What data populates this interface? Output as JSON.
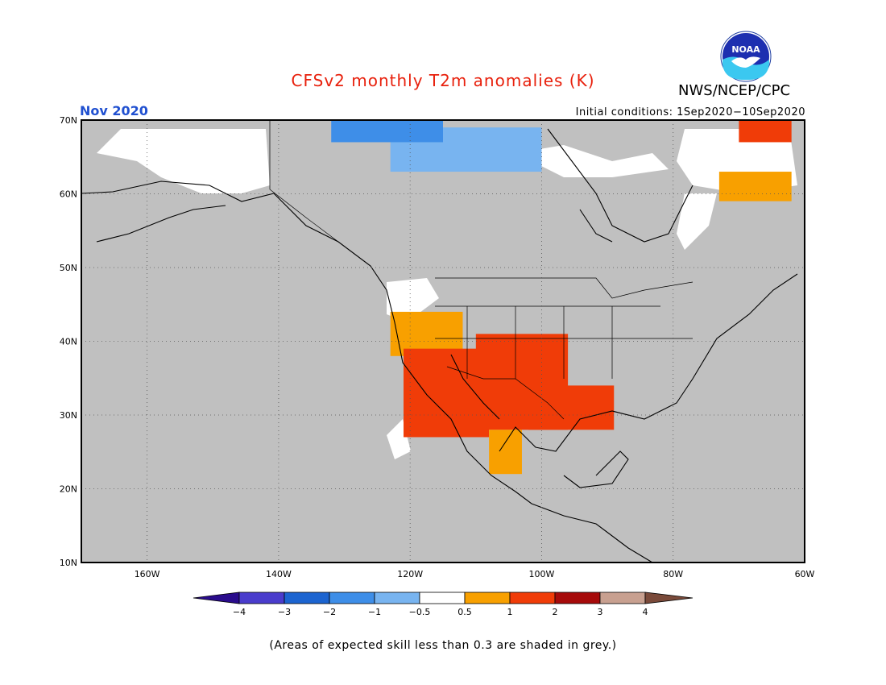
{
  "title": "CFSv2 monthly T2m anomalies (K)",
  "agency": "NWS/NCEP/CPC",
  "logo_text": "NOAA",
  "month": "Nov 2020",
  "initial_conditions": "Initial conditions: 1Sep2020−10Sep2020",
  "footnote": "(Areas of expected skill less than 0.3 are shaded in grey.)",
  "colors": {
    "title": "#e8200c",
    "month": "#2050d0",
    "background": "#c0c0c0",
    "neutral": "#ffffff"
  },
  "map": {
    "lon_range": [
      -170,
      -60
    ],
    "lat_range": [
      10,
      70
    ],
    "lat_labels": [
      "10N",
      "20N",
      "30N",
      "40N",
      "50N",
      "60N",
      "70N"
    ],
    "lon_labels": [
      "160W",
      "140W",
      "120W",
      "100W",
      "80W",
      "60W"
    ],
    "grid": "dotted"
  },
  "colorbar": {
    "tick_labels": [
      "−4",
      "−3",
      "−2",
      "−1",
      "−0.5",
      "0.5",
      "1",
      "2",
      "3",
      "4"
    ],
    "colors": [
      "#2a0c8c",
      "#4a3ccc",
      "#1c64d0",
      "#3e8ee8",
      "#78b4f0",
      "#ffffff",
      "#f8a000",
      "#f03c08",
      "#a60a0a",
      "#c8a090",
      "#7a4a3a"
    ]
  },
  "anomaly_regions": [
    {
      "level": "0.5 to 1",
      "color": "#f8a000",
      "lon": [
        -123,
        -112
      ],
      "lat": [
        38,
        44
      ]
    },
    {
      "level": "1 to 2",
      "color": "#f03c08",
      "lon": [
        -121,
        -108
      ],
      "lat": [
        27,
        39
      ]
    },
    {
      "level": "1 to 2",
      "color": "#f03c08",
      "lon": [
        -110,
        -96
      ],
      "lat": [
        28,
        41
      ]
    },
    {
      "level": "1 to 2",
      "color": "#f03c08",
      "lon": [
        -102,
        -89
      ],
      "lat": [
        28,
        34
      ]
    },
    {
      "level": "0.5 to 1",
      "color": "#f8a000",
      "lon": [
        -108,
        -103
      ],
      "lat": [
        22,
        28
      ]
    },
    {
      "level": "-1 to -0.5",
      "color": "#78b4f0",
      "lon": [
        -123,
        -100
      ],
      "lat": [
        63,
        69
      ]
    },
    {
      "level": "-2 to -1",
      "color": "#3e8ee8",
      "lon": [
        -132,
        -115
      ],
      "lat": [
        67,
        70
      ]
    },
    {
      "level": "0.5 to 1",
      "color": "#f8a000",
      "lon": [
        -73,
        -62
      ],
      "lat": [
        59,
        63
      ]
    },
    {
      "level": "1 to 2",
      "color": "#f03c08",
      "lon": [
        -70,
        -62
      ],
      "lat": [
        67,
        70
      ]
    }
  ]
}
